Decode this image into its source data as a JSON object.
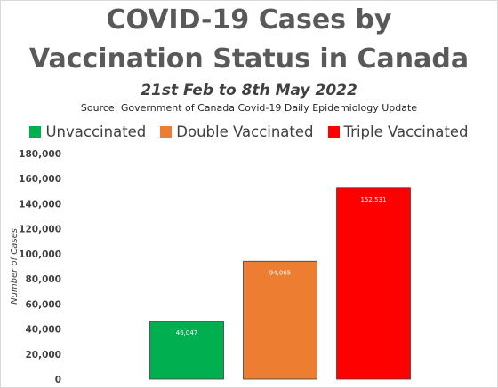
{
  "chart_data": {
    "type": "bar",
    "title_line1": "COVID-19 Cases by",
    "title_line2": "Vaccination Status in Canada",
    "subtitle": "21st Feb to 8th May 2022",
    "source": "Source: Government of Canada Covid-19 Daily Epidemiology Update",
    "ylabel": "Number of Cases",
    "ylim": [
      0,
      180000
    ],
    "yticks": [
      0,
      20000,
      40000,
      60000,
      80000,
      100000,
      120000,
      140000,
      160000,
      180000
    ],
    "ytick_labels": [
      "0",
      "20,000",
      "40,000",
      "60,000",
      "80,000",
      "100,000",
      "120,000",
      "140,000",
      "160,000",
      "180,000"
    ],
    "legend_position": "top-center",
    "grid": false,
    "categories": [
      "Unvaccinated",
      "Double Vaccinated",
      "Triple Vaccinated"
    ],
    "values": [
      46047,
      94065,
      152531
    ],
    "value_labels": [
      "46,047",
      "94,065",
      "152,531"
    ],
    "colors": [
      "#00b050",
      "#ed7d31",
      "#ff0000"
    ]
  }
}
